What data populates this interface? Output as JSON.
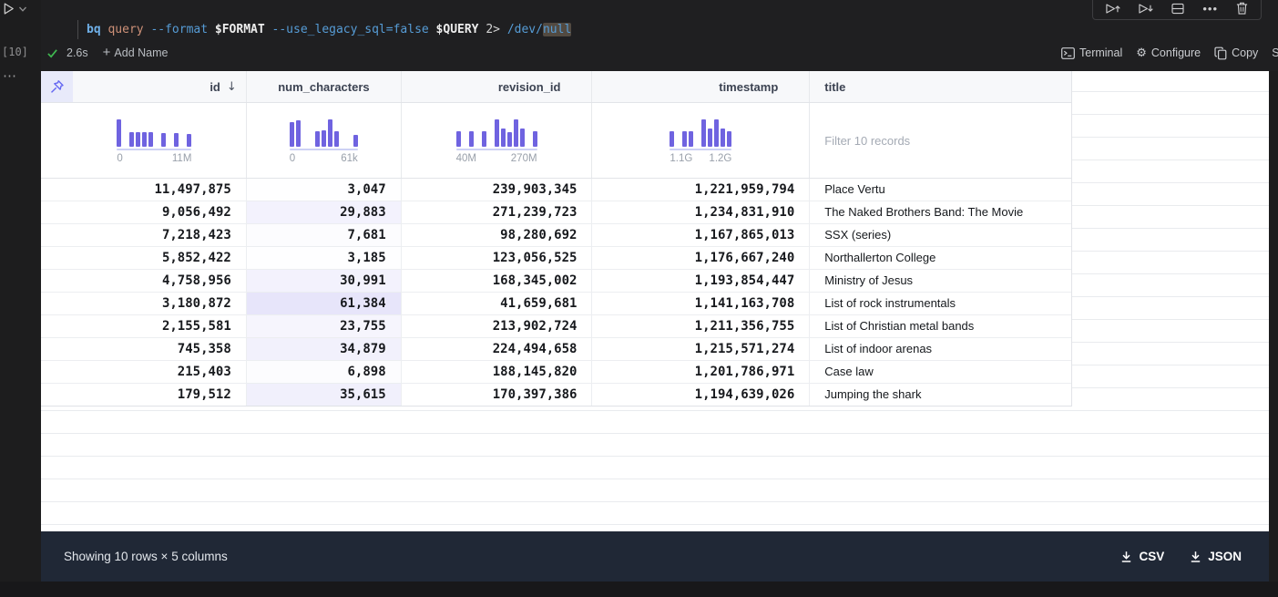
{
  "cell": {
    "execution_count": "[10]",
    "code": {
      "tokens": [
        {
          "text": "bq",
          "cls": "tok-cmd"
        },
        {
          "text": " ",
          "cls": "tok-plain"
        },
        {
          "text": "query",
          "cls": "tok-str"
        },
        {
          "text": " ",
          "cls": "tok-plain"
        },
        {
          "text": "--format",
          "cls": "tok-flag"
        },
        {
          "text": " ",
          "cls": "tok-plain"
        },
        {
          "text": "$FORMAT",
          "cls": "tok-var"
        },
        {
          "text": " ",
          "cls": "tok-plain"
        },
        {
          "text": "--use_legacy_sql=false",
          "cls": "tok-flag"
        },
        {
          "text": " ",
          "cls": "tok-plain"
        },
        {
          "text": "$QUERY",
          "cls": "tok-var"
        },
        {
          "text": " ",
          "cls": "tok-plain"
        },
        {
          "text": "2>",
          "cls": "tok-plain"
        },
        {
          "text": " ",
          "cls": "tok-plain"
        },
        {
          "text": "/dev/",
          "cls": "tok-flag"
        },
        {
          "text": "null",
          "cls": "tok-flag tok-hl"
        }
      ]
    },
    "status": {
      "duration": "2.6s",
      "add_name": "Add Name"
    },
    "actions": {
      "terminal": "Terminal",
      "configure": "Configure",
      "copy": "Copy",
      "shell_script": "Shell Script"
    },
    "toolbar_icons": [
      "run-cell-and-above",
      "run-cell-and-below",
      "split-cell",
      "more-actions",
      "delete-cell"
    ]
  },
  "table": {
    "columns": [
      {
        "key": "id",
        "label": "id",
        "sorted": "desc",
        "hist": {
          "bins": [
            1,
            0,
            0.45,
            0.45,
            0.45,
            0.45,
            0,
            0.42,
            0,
            0.42,
            0,
            0.38
          ],
          "min_label": "0",
          "max_label": "11M"
        }
      },
      {
        "key": "num_characters",
        "label": "num_characters",
        "hist": {
          "bins": [
            0.9,
            0.95,
            0,
            0,
            0.5,
            0.55,
            1,
            0.5,
            0,
            0,
            0.35
          ],
          "min_label": "0",
          "max_label": "61k"
        }
      },
      {
        "key": "revision_id",
        "label": "revision_id",
        "hist": {
          "bins": [
            0.5,
            0,
            0.5,
            0,
            0.5,
            0,
            1,
            0.6,
            0.45,
            1,
            0.6,
            0,
            0.5
          ],
          "min_label": "40M",
          "max_label": "270M"
        }
      },
      {
        "key": "timestamp",
        "label": "timestamp",
        "hist": {
          "bins": [
            0.5,
            0,
            0.5,
            0.5,
            0,
            1,
            0.6,
            1,
            0.6,
            0.5
          ],
          "min_label": "1.1G",
          "max_label": "1.2G"
        }
      },
      {
        "key": "title",
        "label": "title",
        "filter_placeholder": "Filter 10 records"
      }
    ],
    "num_characters_max": 61384,
    "rows": [
      {
        "id": 11497875,
        "num_characters": 3047,
        "revision_id": 239903345,
        "timestamp": 1221959794,
        "title": "Place Vertu"
      },
      {
        "id": 9056492,
        "num_characters": 29883,
        "revision_id": 271239723,
        "timestamp": 1234831910,
        "title": "The Naked Brothers Band: The Movie"
      },
      {
        "id": 7218423,
        "num_characters": 7681,
        "revision_id": 98280692,
        "timestamp": 1167865013,
        "title": "SSX (series)"
      },
      {
        "id": 5852422,
        "num_characters": 3185,
        "revision_id": 123056525,
        "timestamp": 1176667240,
        "title": "Northallerton College"
      },
      {
        "id": 4758956,
        "num_characters": 30991,
        "revision_id": 168345002,
        "timestamp": 1193854447,
        "title": "Ministry of Jesus"
      },
      {
        "id": 3180872,
        "num_characters": 61384,
        "revision_id": 41659681,
        "timestamp": 1141163708,
        "title": "List of rock instrumentals"
      },
      {
        "id": 2155581,
        "num_characters": 23755,
        "revision_id": 213902724,
        "timestamp": 1211356755,
        "title": "List of Christian metal bands"
      },
      {
        "id": 745358,
        "num_characters": 34879,
        "revision_id": 224494658,
        "timestamp": 1215571274,
        "title": "List of indoor arenas"
      },
      {
        "id": 215403,
        "num_characters": 6898,
        "revision_id": 188145820,
        "timestamp": 1201786971,
        "title": "Case law"
      },
      {
        "id": 179512,
        "num_characters": 35615,
        "revision_id": 170397386,
        "timestamp": 1194639026,
        "title": "Jumping the shark"
      }
    ]
  },
  "footer": {
    "summary": "Showing 10 rows × 5 columns",
    "csv_label": "CSV",
    "json_label": "JSON"
  },
  "colors": {
    "bar": "#6f63e0",
    "num_highlight_rgb": "108,95,226",
    "accent": "#6467f2",
    "check_green": "#3fb950"
  }
}
